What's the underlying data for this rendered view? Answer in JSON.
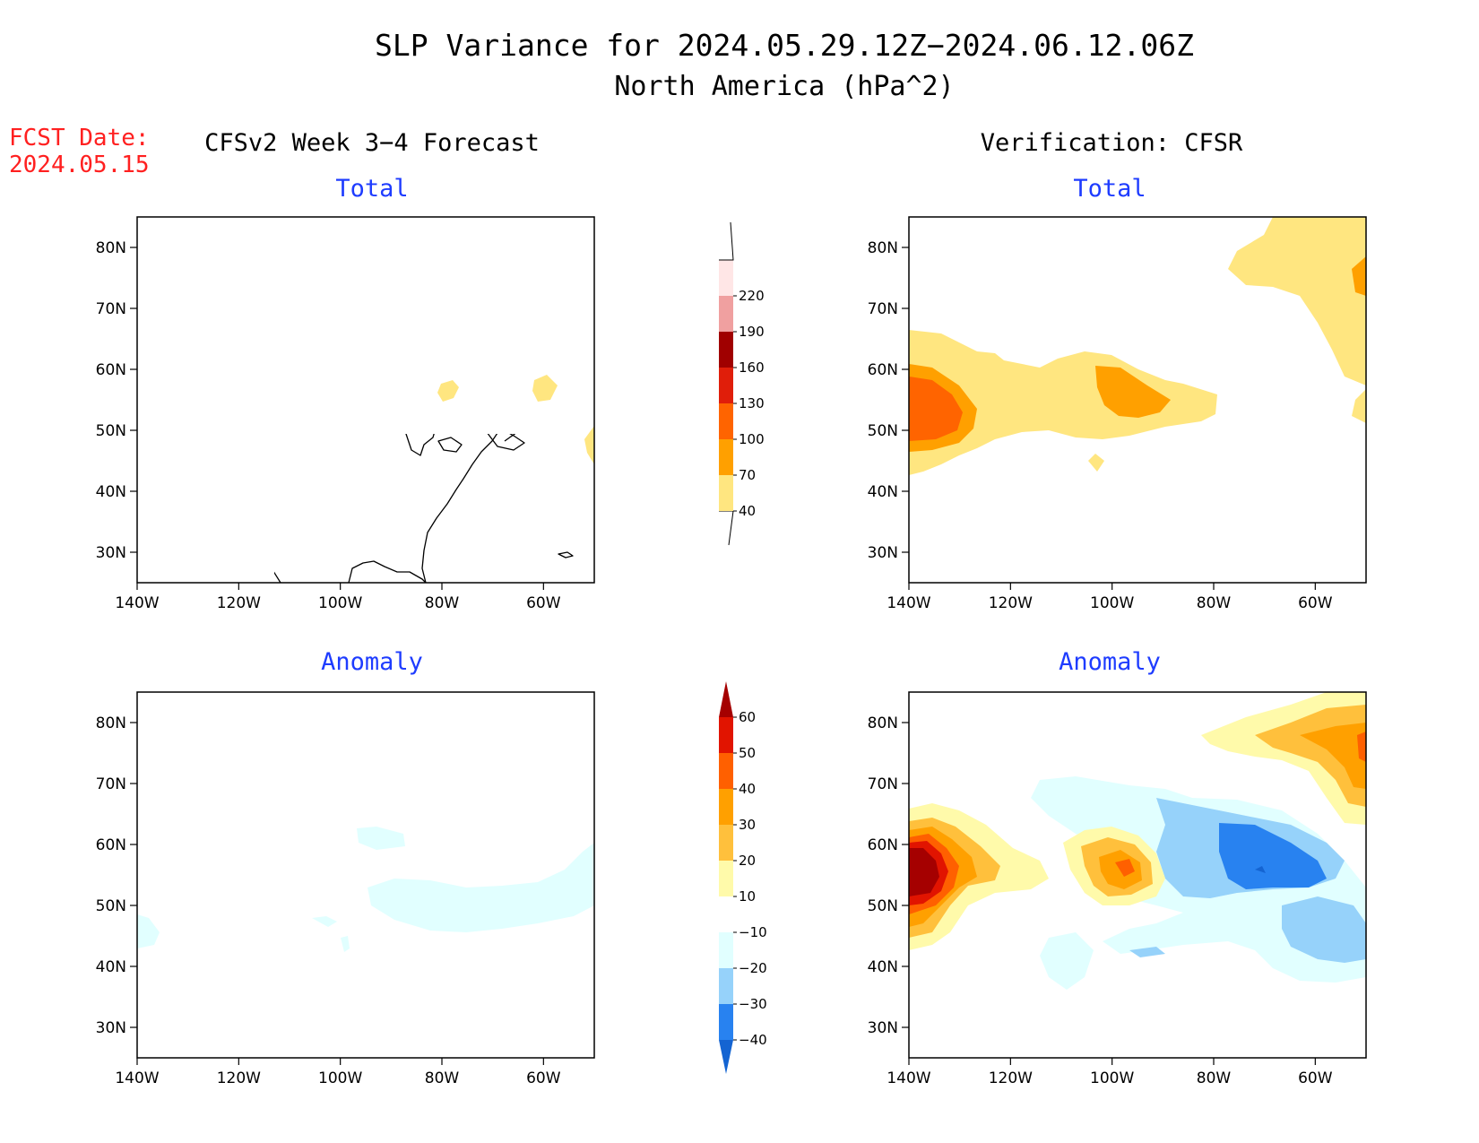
{
  "header": {
    "title_line1": "SLP Variance for 2024.05.29.12Z−2024.06.12.06Z",
    "title_line2": "North America (hPa^2)",
    "fcst_label": "FCST Date:",
    "fcst_date": "2024.05.15",
    "left_heading": "CFSv2 Week 3−4 Forecast",
    "right_heading": "Verification: CFSR"
  },
  "panels": {
    "fcst_total_title": "Total",
    "fcst_anom_title": "Anomaly",
    "ver_total_title": "Total",
    "ver_anom_title": "Anomaly"
  },
  "axes": {
    "lon_ticks": [
      "140W",
      "120W",
      "100W",
      "80W",
      "60W"
    ],
    "lat_ticks": [
      "30N",
      "40N",
      "50N",
      "60N",
      "70N",
      "80N"
    ],
    "lon_values": [
      -140,
      -120,
      -100,
      -80,
      -60
    ],
    "lat_values": [
      30,
      40,
      50,
      60,
      70,
      80
    ],
    "lon_range": [
      -140,
      -50
    ],
    "lat_range": [
      25,
      85
    ]
  },
  "colorbars": {
    "total": {
      "labels": [
        "40",
        "70",
        "100",
        "130",
        "160",
        "190",
        "220"
      ],
      "colors": [
        "#ffe680",
        "#ffa000",
        "#ff6400",
        "#e01e0a",
        "#a00000",
        "#f0a0a0",
        "#ffe6e6"
      ]
    },
    "anomaly": {
      "labels": [
        "−40",
        "−30",
        "−20",
        "−10",
        "10",
        "20",
        "30",
        "40",
        "50",
        "60"
      ],
      "colors": [
        "#1464d2",
        "#2882f0",
        "#96d2fa",
        "#e1ffff",
        "#ffffff",
        "#fffaaa",
        "#ffc03c",
        "#ffa000",
        "#ff6000",
        "#e11400",
        "#a50000"
      ]
    }
  },
  "chart_data": {
    "type": "heatmap",
    "title": "SLP Variance for 2024.05.29.12Z−2024.06.12.06Z",
    "subtitle": "North America (hPa^2)",
    "panels": [
      {
        "name": "CFSv2 Week 3−4 Forecast Total",
        "features": [
          {
            "lon": -79,
            "lat": 57,
            "value": 45
          },
          {
            "lon": -62,
            "lat": 58,
            "value": 45
          },
          {
            "lon": -50,
            "lat": 48,
            "value": 45
          }
        ]
      },
      {
        "name": "CFSv2 Week 3−4 Forecast Anomaly",
        "features": [
          {
            "lon": -75,
            "lat": 52,
            "value": -12
          },
          {
            "lon": -55,
            "lat": 52,
            "value": -12
          },
          {
            "lon": -88,
            "lat": 60,
            "value": -12
          },
          {
            "lon": -140,
            "lat": 46,
            "value": -12
          }
        ]
      },
      {
        "name": "Verification: CFSR Total",
        "features": [
          {
            "lon": -135,
            "lat": 53,
            "value": 100
          },
          {
            "lon": -97,
            "lat": 55,
            "value": 75
          },
          {
            "lon": -100,
            "lat": 54,
            "value": 50
          },
          {
            "lon": -125,
            "lat": 53,
            "value": 50
          },
          {
            "lon": -60,
            "lat": 80,
            "value": 50
          },
          {
            "lon": -52,
            "lat": 77,
            "value": 75
          },
          {
            "lon": -52,
            "lat": 52,
            "value": 45
          }
        ]
      },
      {
        "name": "Verification: CFSR Anomaly",
        "features": [
          {
            "lon": -136,
            "lat": 53,
            "value": 55
          },
          {
            "lon": -97,
            "lat": 55,
            "value": 35
          },
          {
            "lon": -60,
            "lat": 78,
            "value": 35
          },
          {
            "lon": -70,
            "lat": 55,
            "value": -35
          },
          {
            "lon": -80,
            "lat": 60,
            "value": -20
          },
          {
            "lon": -58,
            "lat": 47,
            "value": -20
          },
          {
            "lon": -107,
            "lat": 42,
            "value": -12
          }
        ]
      }
    ]
  }
}
